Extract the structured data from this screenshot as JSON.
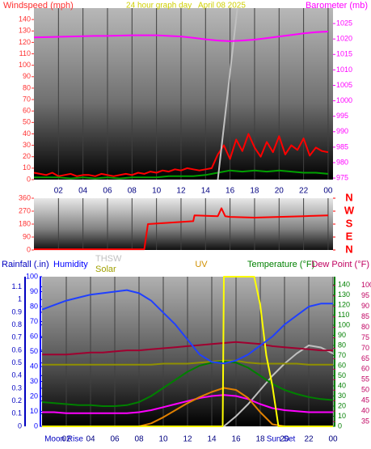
{
  "chart_data": [
    {
      "type": "line",
      "title": "24 hour graph day   April 08 2025",
      "x": [
        0,
        1,
        2,
        3,
        4,
        5,
        6,
        7,
        8,
        9,
        10,
        11,
        12,
        13,
        14,
        15,
        16,
        17,
        18,
        19,
        20,
        21,
        22,
        23,
        24
      ],
      "xlim": [
        0,
        24.4
      ],
      "xticks": [
        {
          "value": 2,
          "label": "02"
        },
        {
          "value": 4,
          "label": "04"
        },
        {
          "value": 6,
          "label": "06"
        },
        {
          "value": 8,
          "label": "08"
        },
        10,
        12,
        14,
        16,
        18,
        20,
        22,
        {
          "value": 24,
          "label": "00"
        }
      ],
      "grid": true,
      "axes": [
        {
          "label": "Windspeed (mph)",
          "lim": [
            0,
            150
          ],
          "ticks": [
            0,
            10,
            20,
            30,
            40,
            50,
            60,
            70,
            80,
            90,
            100,
            110,
            120,
            130,
            140
          ],
          "color": "#ff3030",
          "side": "left"
        },
        {
          "label": "Barometer (mb)",
          "lim": [
            974.5,
            1030
          ],
          "ticks": [
            975,
            980,
            985,
            990,
            995,
            1000,
            1005,
            1010,
            1015,
            1020,
            1025
          ],
          "color": "#ff00ff",
          "side": "right"
        }
      ],
      "series": [
        {
          "color": "#ff0000",
          "axis": 0,
          "x": [
            0,
            0.5,
            1,
            1.5,
            2,
            2.5,
            3,
            3.5,
            4,
            4.5,
            5,
            5.5,
            6,
            6.5,
            7,
            7.5,
            8,
            8.5,
            9,
            9.5,
            10,
            10.5,
            11,
            11.5,
            12,
            12.5,
            13,
            13.5,
            14,
            14.5,
            15,
            15.5,
            16,
            16.5,
            17,
            17.5,
            18,
            18.5,
            19,
            19.5,
            20,
            20.5,
            21,
            21.5,
            22,
            22.5,
            23,
            23.5,
            24
          ],
          "values": [
            6,
            5,
            4,
            6,
            3,
            4,
            5,
            3,
            4,
            4,
            3,
            5,
            4,
            3,
            4,
            5,
            4,
            6,
            5,
            7,
            6,
            8,
            7,
            9,
            8,
            10,
            9,
            8,
            9,
            10,
            22,
            30,
            18,
            35,
            25,
            40,
            28,
            20,
            33,
            24,
            38,
            22,
            30,
            26,
            36,
            21,
            28,
            25,
            24
          ]
        },
        {
          "color": "#00a000",
          "axis": 0,
          "values": [
            2,
            2,
            2,
            1,
            2,
            1,
            2,
            1,
            2,
            2,
            2,
            3,
            3,
            3,
            4,
            6,
            8,
            7,
            8,
            7,
            8,
            7,
            6,
            6,
            5
          ]
        },
        {
          "color": "#c0c0c0",
          "axis": 0,
          "x": [
            15,
            16.6
          ],
          "values": [
            0,
            150
          ]
        },
        {
          "color": "#ff00ff",
          "axis": 1,
          "values": [
            1020.5,
            1020.6,
            1020.7,
            1020.8,
            1020.9,
            1021,
            1021,
            1021.1,
            1021.2,
            1021.2,
            1021.2,
            1021,
            1020.8,
            1020.4,
            1019.9,
            1019.5,
            1019.3,
            1019.5,
            1019.8,
            1020.3,
            1020.8,
            1021.3,
            1021.8,
            1022.2,
            1022.4
          ]
        }
      ]
    },
    {
      "type": "line",
      "xlim": [
        0,
        24.4
      ],
      "xticks": [
        2,
        4,
        6,
        8,
        10,
        12,
        14,
        16,
        18,
        20,
        22,
        24
      ],
      "grid": true,
      "axes": [
        {
          "lim": [
            0,
            360
          ],
          "ticks": [
            0,
            90,
            180,
            270,
            360
          ],
          "color": "#ff3030",
          "side": "left"
        },
        {
          "lim": [
            0,
            360
          ],
          "ticks": [
            {
              "value": 360,
              "label": "N"
            },
            {
              "value": 270,
              "label": "W"
            },
            {
              "value": 180,
              "label": "S"
            },
            {
              "value": 90,
              "label": "E"
            },
            {
              "value": 0,
              "label": "N"
            }
          ],
          "color": "#ff0000",
          "side": "right"
        }
      ],
      "series": [
        {
          "color": "#ff0000",
          "axis": 0,
          "x": [
            0,
            9,
            9.3,
            13,
            13.1,
            15,
            15.3,
            15.6,
            16,
            18,
            20,
            22,
            24
          ],
          "values": [
            5,
            5,
            180,
            200,
            240,
            235,
            290,
            235,
            230,
            225,
            230,
            235,
            240
          ]
        }
      ]
    },
    {
      "type": "line",
      "x": [
        0,
        1,
        2,
        3,
        4,
        5,
        6,
        7,
        8,
        9,
        10,
        11,
        12,
        13,
        14,
        15,
        16,
        17,
        18,
        19,
        20,
        21,
        22,
        23,
        24
      ],
      "xlim": [
        0,
        24
      ],
      "xticks": [
        {
          "value": 2,
          "label": "02"
        },
        {
          "value": 4,
          "label": "04"
        },
        {
          "value": 6,
          "label": "06"
        },
        {
          "value": 8,
          "label": "08"
        },
        10,
        12,
        14,
        16,
        18,
        20,
        22,
        {
          "value": 24,
          "label": "00"
        }
      ],
      "grid": true,
      "annotations": [
        {
          "x": 1.8,
          "label": "Moon Rise"
        },
        {
          "x": 19.7,
          "label": "Sun Set"
        }
      ],
      "legend": [
        {
          "label": "THSW",
          "color": "#c0c0c0"
        },
        {
          "label": "Solar",
          "color": "#a0a000"
        },
        {
          "label": "UV",
          "color": "#d09000"
        }
      ],
      "axes": [
        {
          "label": "Rainfall (.in)",
          "lim": [
            0,
            1.18
          ],
          "ticks": [
            0,
            0.1,
            0.2,
            0.3,
            0.4,
            0.5,
            0.6,
            0.7,
            0.8,
            0.9,
            1,
            1.1
          ],
          "color": "#0000c0",
          "side": "left"
        },
        {
          "label": "Humidity",
          "lim": [
            0,
            100
          ],
          "ticks": [
            0,
            10,
            20,
            30,
            40,
            50,
            60,
            70,
            80,
            90,
            100
          ],
          "color": "#0000ff",
          "side": "left"
        },
        {
          "label": "Temperature (°F)",
          "lim": [
            0,
            148
          ],
          "ticks": [
            0,
            10,
            20,
            30,
            40,
            50,
            60,
            70,
            80,
            90,
            100,
            110,
            120,
            130,
            140
          ],
          "color": "#008000",
          "side": "right"
        },
        {
          "label": "Dew Point (°F)",
          "lim": [
            32.7,
            104.2
          ],
          "ticks": [
            35,
            40,
            45,
            50,
            55,
            60,
            65,
            70,
            75,
            80,
            85,
            90,
            95,
            100
          ],
          "color": "#c00060",
          "side": "right"
        }
      ],
      "series": [
        {
          "color": "#c0c0c0",
          "axis": 2,
          "x": [
            15,
            16,
            17,
            18,
            19,
            20,
            21,
            22,
            23,
            24
          ],
          "values": [
            0,
            10,
            22,
            36,
            50,
            62,
            72,
            80,
            78,
            72
          ]
        },
        {
          "color": "#a00030",
          "axis": 3,
          "values": [
            67,
            67,
            67,
            67.5,
            68,
            68,
            68.5,
            69,
            69,
            69.5,
            70,
            70.5,
            71,
            71.5,
            72,
            72.5,
            73,
            72.5,
            72,
            71,
            70.5,
            70,
            69.5,
            69,
            69
          ]
        },
        {
          "color": "#909000",
          "axis": 2,
          "values": [
            61,
            61,
            61,
            61,
            61,
            61,
            61,
            61,
            61,
            61,
            62,
            62,
            62,
            63,
            64,
            65,
            65,
            63,
            62,
            62,
            62,
            62,
            61,
            61,
            61
          ]
        },
        {
          "color": "#008000",
          "axis": 2,
          "values": [
            24,
            23,
            22,
            21,
            21,
            20,
            20,
            21,
            24,
            30,
            38,
            46,
            54,
            60,
            63,
            64,
            63,
            58,
            50,
            42,
            36,
            32,
            29,
            27,
            26
          ]
        },
        {
          "color": "#ff00ff",
          "axis": 2,
          "values": [
            14,
            14,
            13,
            13,
            13,
            13,
            13,
            13,
            14,
            16,
            19,
            22,
            25,
            28,
            30,
            31,
            30,
            27,
            22,
            18,
            16,
            15,
            14,
            14,
            14
          ]
        },
        {
          "color": "#e08000",
          "axis": 2,
          "values": [
            0,
            0,
            0,
            0,
            0,
            0,
            0,
            0,
            0,
            3,
            9,
            16,
            23,
            29,
            34,
            38,
            36,
            28,
            14,
            2,
            0,
            0,
            0,
            0,
            0
          ]
        },
        {
          "color": "#ffff00",
          "axis": 2,
          "x": [
            0,
            14.9,
            15,
            17.5,
            18,
            18.5,
            19,
            19.5,
            24
          ],
          "values": [
            0,
            0,
            148,
            148,
            120,
            70,
            40,
            0,
            0
          ]
        },
        {
          "color": "#2040ff",
          "axis": 1,
          "values": [
            78,
            81,
            84,
            86,
            88,
            89,
            90,
            91,
            89,
            84,
            76,
            68,
            58,
            48,
            43,
            42,
            44,
            48,
            54,
            60,
            68,
            74,
            80,
            82,
            82
          ]
        }
      ]
    }
  ]
}
